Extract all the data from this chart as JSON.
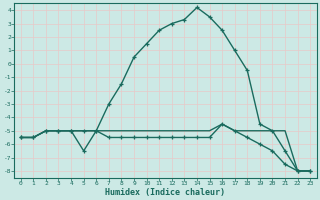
{
  "xlabel": "Humidex (Indice chaleur)",
  "xlim": [
    -0.5,
    23.5
  ],
  "ylim": [
    -8.5,
    4.5
  ],
  "bg_color": "#cce9e5",
  "grid_color": "#e8c8c8",
  "line_color": "#1a6b5e",
  "line1_x": [
    0,
    1,
    2,
    3,
    4,
    5,
    6,
    7,
    8,
    9,
    10,
    11,
    12,
    13,
    14,
    15,
    16,
    17,
    18,
    19,
    20,
    21,
    22,
    23
  ],
  "line1_y": [
    -5.5,
    -5.5,
    -5.0,
    -5.0,
    -5.0,
    -5.0,
    -5.0,
    -5.0,
    -5.0,
    -5.0,
    -5.0,
    -5.0,
    -5.0,
    -5.0,
    -5.0,
    -5.0,
    -4.5,
    -5.0,
    -5.0,
    -5.0,
    -5.0,
    -5.0,
    -8.0,
    -8.0
  ],
  "line2_x": [
    0,
    1,
    2,
    3,
    4,
    5,
    6,
    7,
    8,
    9,
    10,
    11,
    12,
    13,
    14,
    15,
    16,
    17,
    18,
    19,
    20,
    21,
    22,
    23
  ],
  "line2_y": [
    -5.5,
    -5.5,
    -5.0,
    -5.0,
    -5.0,
    -6.5,
    -5.0,
    -3.0,
    -1.5,
    0.5,
    1.5,
    2.5,
    3.0,
    3.3,
    4.2,
    3.5,
    2.5,
    1.0,
    -0.5,
    -4.5,
    -5.0,
    -6.5,
    -8.0,
    -8.0
  ],
  "line3_x": [
    0,
    1,
    2,
    3,
    4,
    5,
    6,
    7,
    8,
    9,
    10,
    11,
    12,
    13,
    14,
    15,
    16,
    17,
    18,
    19,
    20,
    21,
    22,
    23
  ],
  "line3_y": [
    -5.5,
    -5.5,
    -5.0,
    -5.0,
    -5.0,
    -5.0,
    -5.0,
    -5.5,
    -5.5,
    -5.5,
    -5.5,
    -5.5,
    -5.5,
    -5.5,
    -5.5,
    -5.5,
    -4.5,
    -5.0,
    -5.5,
    -6.0,
    -6.5,
    -7.5,
    -8.0,
    -8.0
  ],
  "yticks": [
    4,
    3,
    2,
    1,
    0,
    -1,
    -2,
    -3,
    -4,
    -5,
    -6,
    -7,
    -8
  ],
  "xticks": [
    0,
    1,
    2,
    3,
    4,
    5,
    6,
    7,
    8,
    9,
    10,
    11,
    12,
    13,
    14,
    15,
    16,
    17,
    18,
    19,
    20,
    21,
    22,
    23
  ]
}
